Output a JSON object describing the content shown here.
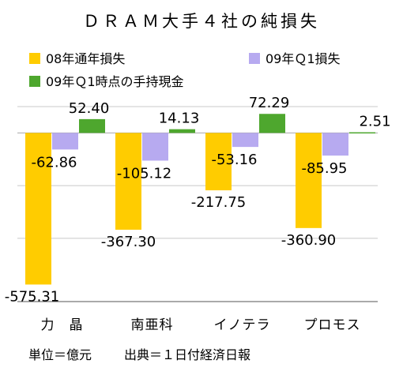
{
  "chart_data": {
    "type": "bar",
    "title": "ＤＲＡＭ大手４社の純損失",
    "categories": [
      "力　晶",
      "南亜科",
      "イノテラ",
      "プロモス"
    ],
    "series": [
      {
        "name": "08年通年損失",
        "color": "#FFCC00",
        "values": [
          -575.31,
          -367.3,
          -217.75,
          -360.9
        ]
      },
      {
        "name": "09年Ｑ1損失",
        "color": "#B7AAF0",
        "values": [
          -62.86,
          -105.12,
          -53.16,
          -85.95
        ]
      },
      {
        "name": "09年Ｑ1時点の手持現金",
        "color": "#4EA72E",
        "values": [
          52.4,
          14.13,
          72.29,
          2.51
        ]
      }
    ],
    "data_labels": [
      [
        "-575.31",
        "-367.30",
        "-217.75",
        "-360.90"
      ],
      [
        "-62.86",
        "-105.12",
        "-53.16",
        "-85.95"
      ],
      [
        "52.40",
        "14.13",
        "72.29",
        "2.51"
      ]
    ],
    "ylim": [
      -640,
      100
    ],
    "gridlines": [
      100,
      0,
      -200,
      -400
    ],
    "grid": true,
    "legend_position": "top",
    "notes": [
      "単位＝億元",
      "出典＝１日付経済日報"
    ]
  }
}
